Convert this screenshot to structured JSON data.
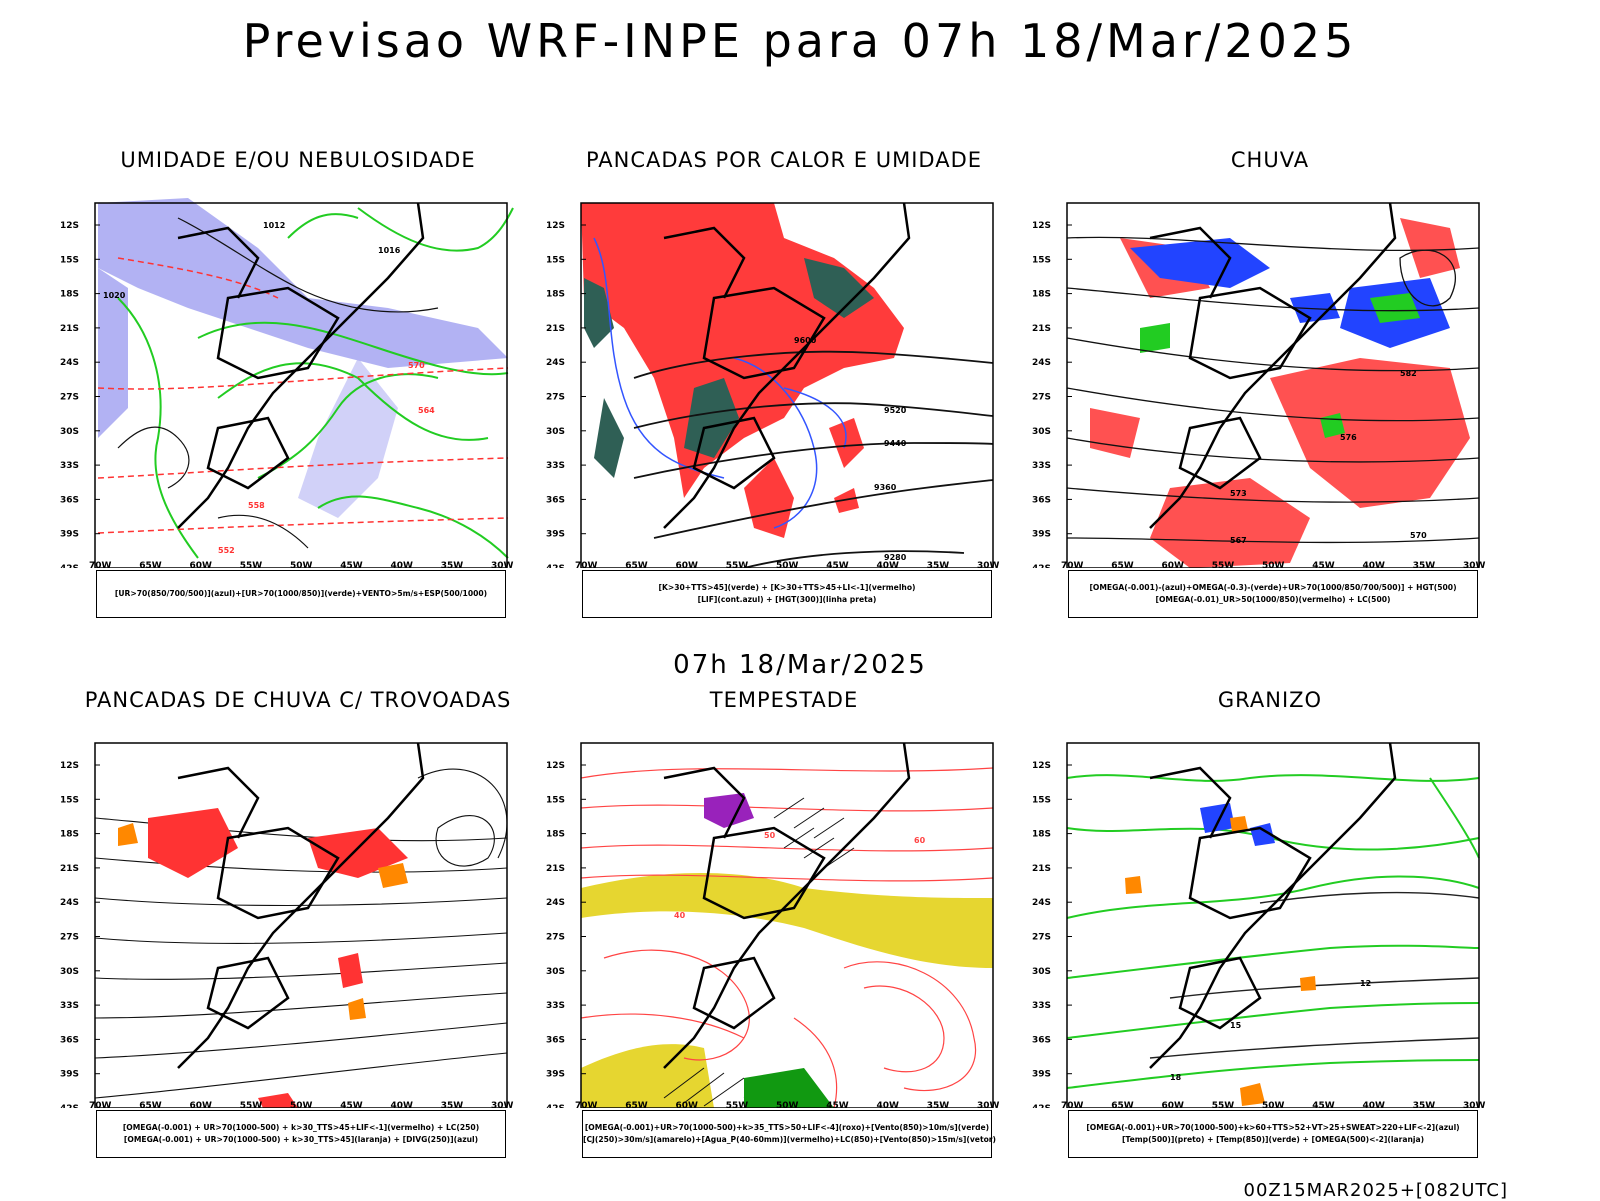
{
  "header": {
    "title": "Previsao WRF-INPE  para 07h 18/Mar/2025"
  },
  "mid_title": "07h 18/Mar/2025",
  "footer": "00Z15MAR2025+[082UTC]",
  "axes": {
    "lat_labels": [
      "12S",
      "15S",
      "18S",
      "21S",
      "24S",
      "27S",
      "30S",
      "33S",
      "36S",
      "39S",
      "42S"
    ],
    "lon_labels": [
      "70W",
      "65W",
      "60W",
      "55W",
      "50W",
      "45W",
      "40W",
      "35W",
      "30W"
    ]
  },
  "panels": [
    {
      "title": "UMIDADE E/OU NEBULOSIDADE",
      "legend": [
        "[UR>70(850/700/500)](azul)+[UR>70(1000/850)](verde)+VENTO>5m/s+ESP(500/1000)"
      ],
      "colors": [
        "#a8a8f0",
        "#22cc22",
        "#ff3333"
      ],
      "contour_labels": [
        "1012",
        "1016",
        "1020",
        "570",
        "564",
        "558",
        "552"
      ]
    },
    {
      "title": "PANCADAS POR CALOR E UMIDADE",
      "legend": [
        "[K>30+TTS>45](verde) + [K>30+TTS>45+LI<-1](vermelho)",
        "[LIF](cont.azul) + [HGT(300)](linha preta)"
      ],
      "colors": [
        "#ff3b3b",
        "#2f5f55",
        "#3355ff"
      ],
      "contour_labels": [
        "9600",
        "9520",
        "9440",
        "9360",
        "9280"
      ]
    },
    {
      "title": "CHUVA",
      "legend": [
        "[OMEGA(-0.001)-(azul)+OMEGA(-0.3)-(verde)+UR>70(1000/850/700/500)] + HGT(500)",
        "[OMEGA(-0.01)_UR>50(1000/850)(vermelho) + LC(500)"
      ],
      "colors": [
        "#ff3333",
        "#2244ff",
        "#22cc22"
      ],
      "contour_labels": [
        "582",
        "576",
        "573",
        "570",
        "567"
      ]
    },
    {
      "title": "PANCADAS DE CHUVA C/ TROVOADAS",
      "legend": [
        "[OMEGA(-0.001) + UR>70(1000-500) + k>30_TTS>45+LIF<-1](vermelho) + LC(250)",
        "[OMEGA(-0.001) + UR>70(1000-500) + k>30_TTS>45](laranja) + [DIVG(250)](azul)"
      ],
      "colors": [
        "#ff3333",
        "#ff8800",
        "#2244ff"
      ],
      "contour_labels": []
    },
    {
      "title": "TEMPESTADE",
      "legend": [
        "[OMEGA(-0.001)+UR>70(1000-500)+k>35_TTS>50+LIF<-4](roxo)+[Vento(850)>10m/s](verde)",
        "[CJ(250)>30m/s](amarelo)+[Agua_P(40-60mm)](vermelho)+LC(850)+[Vento(850)>15m/s](vetor)"
      ],
      "colors": [
        "#e6d630",
        "#ff4444",
        "#9922bb",
        "#119911"
      ],
      "contour_labels": [
        "40",
        "50",
        "60"
      ]
    },
    {
      "title": "GRANIZO",
      "legend": [
        "[OMEGA(-0.001)+UR>70(1000-500)+k>60+TTS>52+VT>25+SWEAT>220+LIF<-2](azul)",
        "[Temp(500)](preto) + [Temp(850)](verde) + [OMEGA(500)<-2](laranja)"
      ],
      "colors": [
        "#22cc22",
        "#222222",
        "#ff8800",
        "#2244ff"
      ],
      "contour_labels": [
        "12",
        "15",
        "18"
      ]
    }
  ]
}
